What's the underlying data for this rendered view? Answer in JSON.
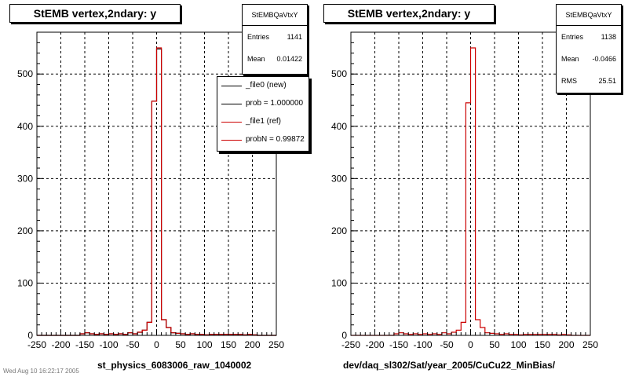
{
  "panels": [
    {
      "title": "StEMB  vertex,2ndary: y",
      "stats": {
        "name": "StEMBQaVtxY",
        "rows": [
          {
            "label": "Entries",
            "value": "1141"
          },
          {
            "label": "Mean",
            "value": "0.01422"
          }
        ]
      },
      "legend": [
        {
          "label": "_file0 (new)",
          "color": "#000000"
        },
        {
          "label": "prob = 1.000000",
          "color": "#000000"
        },
        {
          "label": "_file1 (ref)",
          "color": "#cc0000"
        },
        {
          "label": "probN = 0.99872",
          "color": "#cc0000"
        }
      ],
      "xlabel": "st_physics_6083006_raw_1040002"
    },
    {
      "title": "StEMB  vertex,2ndary: y",
      "stats": {
        "name": "StEMBQaVtxY",
        "rows": [
          {
            "label": "Entries",
            "value": "1138"
          },
          {
            "label": "Mean",
            "value": "-0.0466"
          },
          {
            "label": "RMS",
            "value": "25.51"
          }
        ]
      },
      "legend": [],
      "xlabel": "dev/daq_sl302/Sat/year_2005/CuCu22_MinBias/"
    }
  ],
  "footer_text": "Wed Aug 10 16:22:17 2005",
  "chart_data": [
    {
      "type": "histogram",
      "title": "StEMB  vertex,2ndary: y",
      "xlabel": "st_physics_6083006_raw_1040002",
      "ylabel": "",
      "xlim": [
        -250,
        250
      ],
      "ylim": [
        0,
        580
      ],
      "xticks": [
        -250,
        -200,
        -150,
        -100,
        -50,
        0,
        50,
        100,
        150,
        200,
        250
      ],
      "yticks": [
        0,
        100,
        200,
        300,
        400,
        500
      ],
      "grid": true,
      "bin_width": 10,
      "series": [
        {
          "name": "_file0 (new)",
          "color": "#000000",
          "x_start": -250,
          "values": [
            0,
            0,
            0,
            0,
            0,
            0,
            0,
            0,
            0,
            3,
            5,
            3,
            2,
            3,
            2,
            3,
            2,
            3,
            2,
            5,
            3,
            6,
            10,
            25,
            448,
            548,
            30,
            15,
            5,
            4,
            3,
            2,
            3,
            2,
            2,
            1,
            2,
            2,
            2,
            2,
            2,
            2,
            2,
            1,
            2,
            1,
            0,
            0,
            0,
            0
          ]
        },
        {
          "name": "_file1 (ref)",
          "color": "#cc0000",
          "x_start": -250,
          "values": [
            0,
            0,
            0,
            0,
            0,
            0,
            0,
            0,
            0,
            3,
            5,
            3,
            2,
            3,
            2,
            3,
            2,
            3,
            2,
            5,
            3,
            6,
            10,
            25,
            448,
            550,
            30,
            15,
            5,
            4,
            3,
            2,
            3,
            2,
            2,
            1,
            2,
            2,
            2,
            2,
            2,
            2,
            2,
            1,
            2,
            1,
            0,
            0,
            0,
            0
          ]
        }
      ]
    },
    {
      "type": "histogram",
      "title": "StEMB  vertex,2ndary: y",
      "xlabel": "dev/daq_sl302/Sat/year_2005/CuCu22_MinBias/",
      "ylabel": "",
      "xlim": [
        -250,
        250
      ],
      "ylim": [
        0,
        580
      ],
      "xticks": [
        -250,
        -200,
        -150,
        -100,
        -50,
        0,
        50,
        100,
        150,
        200,
        250
      ],
      "yticks": [
        0,
        100,
        200,
        300,
        400,
        500
      ],
      "grid": true,
      "bin_width": 10,
      "series": [
        {
          "name": "",
          "color": "#cc0000",
          "x_start": -250,
          "values": [
            0,
            0,
            0,
            0,
            0,
            0,
            0,
            0,
            0,
            3,
            5,
            3,
            2,
            3,
            2,
            3,
            2,
            3,
            2,
            5,
            3,
            6,
            10,
            25,
            445,
            550,
            30,
            15,
            5,
            4,
            3,
            2,
            3,
            2,
            2,
            1,
            2,
            2,
            2,
            2,
            2,
            2,
            2,
            1,
            2,
            1,
            0,
            0,
            0,
            0
          ]
        }
      ]
    }
  ]
}
